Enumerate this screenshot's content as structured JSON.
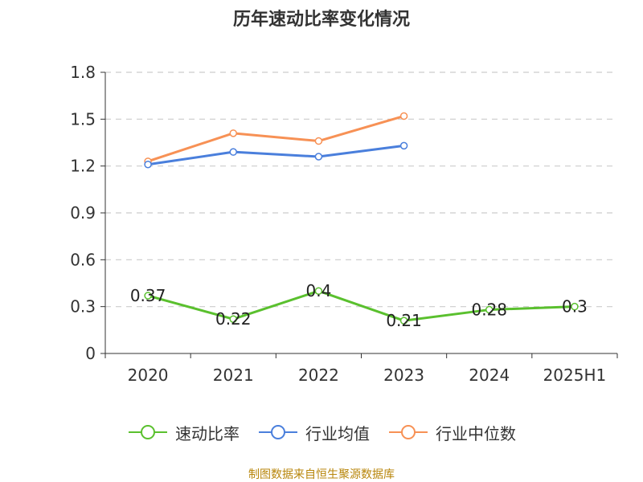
{
  "chart_data": {
    "type": "line",
    "title": "历年速动比率变化情况",
    "categories": [
      "2020",
      "2021",
      "2022",
      "2023",
      "2024",
      "2025H1"
    ],
    "ylim": [
      0,
      1.8
    ],
    "yticks": [
      0,
      0.3,
      0.6,
      0.9,
      1.2,
      1.5,
      1.8
    ],
    "ytick_labels": [
      "0",
      "0.3",
      "0.6",
      "0.9",
      "1.2",
      "1.5",
      "1.8"
    ],
    "grid": true,
    "legend_position": "bottom",
    "series": [
      {
        "name": "速动比率",
        "color": "#5ac02e",
        "values": [
          0.37,
          0.22,
          0.4,
          0.21,
          0.28,
          0.3
        ],
        "data_labels": [
          "0.37",
          "0.22",
          "0.4",
          "0.21",
          "0.28",
          "0.3"
        ]
      },
      {
        "name": "行业均值",
        "color": "#4a7fdc",
        "values": [
          1.21,
          1.29,
          1.26,
          1.33,
          null,
          null
        ]
      },
      {
        "name": "行业中位数",
        "color": "#f79155",
        "values": [
          1.23,
          1.41,
          1.36,
          1.52,
          null,
          null
        ]
      }
    ]
  },
  "source_text": "制图数据来自恒生聚源数据库"
}
